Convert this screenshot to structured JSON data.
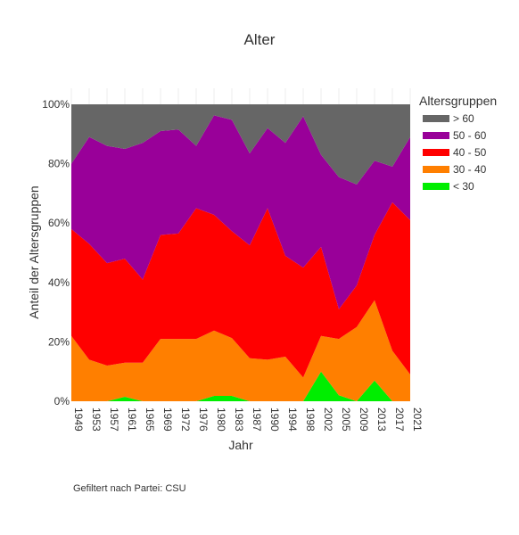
{
  "chart_data": {
    "type": "area",
    "stacking": "percent",
    "title": "Alter",
    "xlabel": "Jahr",
    "ylabel": "Anteil der Altersgruppen",
    "x": [
      "1949",
      "1953",
      "1957",
      "1961",
      "1965",
      "1969",
      "1972",
      "1976",
      "1980",
      "1983",
      "1987",
      "1990",
      "1994",
      "1998",
      "2002",
      "2005",
      "2009",
      "2013",
      "2017",
      "2021"
    ],
    "ylim": [
      0,
      100
    ],
    "y_ticks": [
      "0%",
      "20%",
      "40%",
      "60%",
      "80%",
      "100%"
    ],
    "legend_title": "Altersgruppen",
    "legend_position": "right",
    "series": [
      {
        "name": "< 30",
        "color": "#00ee00",
        "values": [
          0,
          0,
          0,
          1.5,
          0,
          0,
          0,
          0,
          1.8,
          1.8,
          0,
          0,
          0,
          0,
          10,
          2,
          0,
          7,
          0,
          0
        ]
      },
      {
        "name": "30 - 40",
        "color": "#ff7f00",
        "values": [
          22,
          14,
          12,
          11.5,
          13,
          21,
          21,
          21,
          22,
          19.5,
          14.5,
          14,
          15,
          8,
          12,
          19,
          25,
          27,
          17,
          9
        ]
      },
      {
        "name": "40 - 50",
        "color": "#ff0000",
        "values": [
          36,
          39,
          34.5,
          35,
          28,
          35,
          35.5,
          44,
          39,
          36,
          38,
          51,
          34,
          37,
          30,
          10,
          14,
          22,
          50,
          52
        ]
      },
      {
        "name": "50 - 60",
        "color": "#990099",
        "values": [
          22,
          36,
          39.5,
          37,
          46,
          35,
          35,
          21,
          33.5,
          37.5,
          31,
          27,
          38,
          51,
          31,
          44.5,
          34,
          25,
          12,
          28
        ]
      },
      {
        "name": "> 60",
        "color": "#666666",
        "values": [
          20,
          11,
          14,
          15,
          13,
          9,
          8.5,
          14,
          3.7,
          5.2,
          16.5,
          8,
          13,
          4,
          17,
          24.5,
          27,
          19,
          21,
          11
        ]
      }
    ],
    "legend_order": [
      "> 60",
      "50 - 60",
      "40 - 50",
      "30 - 40",
      "< 30"
    ]
  },
  "footnote": "Gefiltert nach Partei: CSU"
}
